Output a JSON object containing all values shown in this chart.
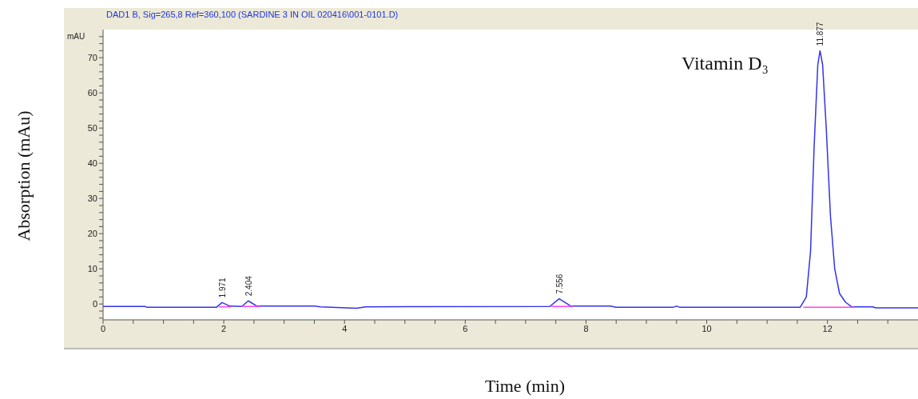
{
  "chart_data": {
    "type": "line",
    "title": "DAD1 B, Sig=265,8 Ref=360,100 (SARDINE 3 IN OIL 020416\\001-0101.D)",
    "xlabel": "Time (min)",
    "ylabel": "Absorption (mAu)",
    "annotations": [
      "mAU",
      "Vitamin D₃",
      {
        "text": "1.971",
        "x": 1.971,
        "y": 0.4
      },
      {
        "text": "2.404",
        "x": 2.404,
        "y": 0.9
      },
      {
        "text": "7.556",
        "x": 7.556,
        "y": 1.5
      },
      {
        "text": "11.877",
        "x": 11.877,
        "y": 72
      }
    ],
    "xlim": [
      0,
      13.5
    ],
    "ylim": [
      -4.5,
      78
    ],
    "xticks": [
      0,
      {
        "value": 0.5,
        "label": null
      },
      {
        "value": 1,
        "label": null
      },
      {
        "value": 1.5,
        "label": null
      },
      2,
      {
        "value": 2.5,
        "label": null
      },
      {
        "value": 3,
        "label": null
      },
      {
        "value": 3.5,
        "label": null
      },
      4,
      {
        "value": 4.5,
        "label": null
      },
      {
        "value": 5,
        "label": null
      },
      {
        "value": 5.5,
        "label": null
      },
      6,
      {
        "value": 6.5,
        "label": null
      },
      {
        "value": 7,
        "label": null
      },
      {
        "value": 7.5,
        "label": null
      },
      8,
      {
        "value": 8.5,
        "label": null
      },
      {
        "value": 9,
        "label": null
      },
      {
        "value": 9.5,
        "label": null
      },
      10,
      {
        "value": 10.5,
        "label": null
      },
      {
        "value": 11,
        "label": null
      },
      {
        "value": 11.5,
        "label": null
      },
      12,
      {
        "value": 12.5,
        "label": null
      },
      {
        "value": 13,
        "label": null
      }
    ],
    "yticks": [
      {
        "value": -4,
        "label": null
      },
      {
        "value": -2,
        "label": null
      },
      0,
      {
        "value": 2,
        "label": null
      },
      {
        "value": 4,
        "label": null
      },
      {
        "value": 6,
        "label": null
      },
      {
        "value": 8,
        "label": null
      },
      10,
      {
        "value": 12,
        "label": null
      },
      {
        "value": 14,
        "label": null
      },
      {
        "value": 16,
        "label": null
      },
      {
        "value": 18,
        "label": null
      },
      20,
      {
        "value": 22,
        "label": null
      },
      {
        "value": 24,
        "label": null
      },
      {
        "value": 26,
        "label": null
      },
      {
        "value": 28,
        "label": null
      },
      30,
      {
        "value": 32,
        "label": null
      },
      {
        "value": 34,
        "label": null
      },
      {
        "value": 36,
        "label": null
      },
      {
        "value": 38,
        "label": null
      },
      40,
      {
        "value": 42,
        "label": null
      },
      {
        "value": 44,
        "label": null
      },
      {
        "value": 46,
        "label": null
      },
      {
        "value": 48,
        "label": null
      },
      50,
      {
        "value": 52,
        "label": null
      },
      {
        "value": 54,
        "label": null
      },
      {
        "value": 56,
        "label": null
      },
      {
        "value": 58,
        "label": null
      },
      60,
      {
        "value": 62,
        "label": null
      },
      {
        "value": 64,
        "label": null
      },
      {
        "value": 66,
        "label": null
      },
      {
        "value": 68,
        "label": null
      },
      70,
      {
        "value": 72,
        "label": null
      },
      {
        "value": 74,
        "label": null
      },
      {
        "value": 76,
        "label": null
      }
    ],
    "series": [
      {
        "color": "#3333ee",
        "x": [
          0,
          0.7,
          0.72,
          1.88,
          1.971,
          2.1,
          2.3,
          2.404,
          2.55,
          3.5,
          3.6,
          4.2,
          4.35,
          7.4,
          7.556,
          7.75,
          8.4,
          8.5,
          9.45,
          9.5,
          9.55,
          11.55,
          11.65,
          11.72,
          11.78,
          11.84,
          11.877,
          11.92,
          11.98,
          12.05,
          12.12,
          12.2,
          12.3,
          12.4,
          12.75,
          12.8,
          13.5
        ],
        "values": [
          -0.7,
          -0.7,
          -0.9,
          -0.9,
          0.4,
          -0.6,
          -0.7,
          0.9,
          -0.6,
          -0.6,
          -0.8,
          -1.2,
          -0.8,
          -0.7,
          1.5,
          -0.6,
          -0.6,
          -0.9,
          -0.9,
          -0.6,
          -0.9,
          -0.9,
          2,
          15,
          45,
          68,
          72,
          68,
          50,
          25,
          10,
          3,
          0.5,
          -0.8,
          -0.8,
          -1.1,
          -1.1
        ]
      },
      {
        "color": "#ff44ee",
        "x": [
          1.92,
          2.12,
          2.13,
          2.3,
          2.6,
          2.61,
          7.42,
          7.78,
          7.79,
          11.6,
          12.45
        ],
        "values": [
          -0.8,
          -0.8,
          null,
          -0.7,
          -0.7,
          null,
          -0.7,
          -0.7,
          null,
          -0.9,
          -0.9
        ]
      }
    ]
  }
}
